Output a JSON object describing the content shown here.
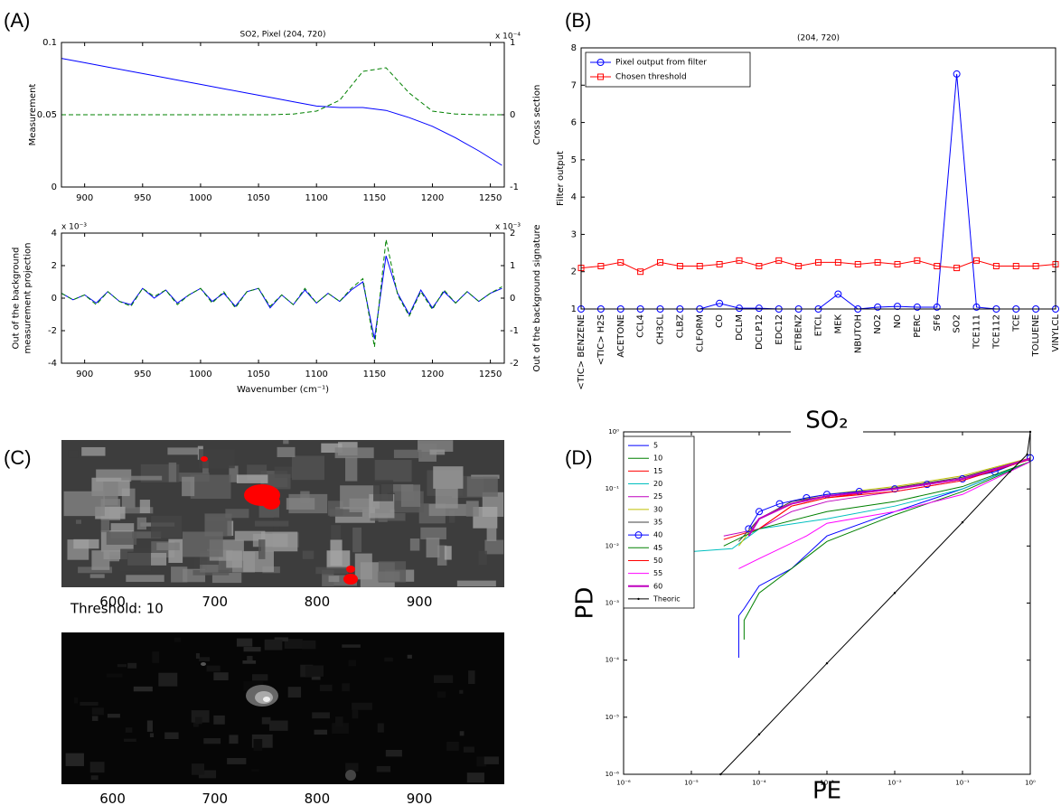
{
  "chart_data": [
    {
      "type": "line",
      "panel": "(A)",
      "title": "SO2, Pixel (204, 720)",
      "ylabel": "Measurement",
      "y2label": "Cross section",
      "y2_multiplier": "x 10⁻⁴",
      "x": [
        880,
        900,
        920,
        940,
        960,
        980,
        1000,
        1020,
        1040,
        1060,
        1080,
        1100,
        1120,
        1140,
        1160,
        1180,
        1200,
        1220,
        1240,
        1260
      ],
      "series": [
        {
          "color": "#0000ff",
          "values": [
            0.089,
            0.086,
            0.083,
            0.08,
            0.077,
            0.074,
            0.071,
            0.068,
            0.065,
            0.062,
            0.059,
            0.056,
            0.055,
            0.055,
            0.053,
            0.048,
            0.042,
            0.034,
            0.025,
            0.015
          ]
        },
        {
          "color": "#008000",
          "axis": "y2",
          "linestyle": "dashed",
          "values": [
            0,
            0,
            0,
            0,
            0,
            0,
            0,
            0,
            0,
            0,
            0.01,
            0.05,
            0.2,
            0.6,
            0.65,
            0.3,
            0.05,
            0.01,
            0,
            0
          ]
        }
      ],
      "xlim": [
        880,
        1262
      ],
      "xticks": [
        900,
        950,
        1000,
        1050,
        1100,
        1150,
        1200,
        1250
      ],
      "ylim": [
        0,
        0.1
      ],
      "yticks": [
        0,
        0.05,
        0.1
      ],
      "y2lim": [
        -1,
        1
      ],
      "y2ticks": [
        -1,
        0,
        1
      ]
    },
    {
      "type": "line",
      "xlabel": "Wavenumber (cm⁻¹)",
      "ylabel": [
        "Out of the background",
        "measurement projection"
      ],
      "y2label": "Out of the background signature",
      "y_multiplier": "x 10⁻³",
      "y2_multiplier": "x 10⁻³",
      "x": [
        880,
        890,
        900,
        910,
        920,
        930,
        940,
        950,
        960,
        970,
        980,
        990,
        1000,
        1010,
        1020,
        1030,
        1040,
        1050,
        1060,
        1070,
        1080,
        1090,
        1100,
        1110,
        1120,
        1130,
        1140,
        1150,
        1160,
        1170,
        1180,
        1190,
        1200,
        1210,
        1220,
        1230,
        1240,
        1250,
        1260
      ],
      "series": [
        {
          "color": "#0000ff",
          "values": [
            0.3,
            -0.1,
            0.2,
            -0.3,
            0.4,
            -0.2,
            -0.4,
            0.6,
            0,
            0.5,
            -0.3,
            0.2,
            0.6,
            -0.2,
            0.3,
            -0.5,
            0.4,
            0.6,
            -0.6,
            0.2,
            -0.4,
            0.5,
            -0.3,
            0.3,
            -0.2,
            0.5,
            1,
            -2.5,
            2.6,
            0.3,
            -1,
            0.5,
            -0.6,
            0.4,
            -0.3,
            0.4,
            -0.2,
            0.3,
            0.6
          ]
        },
        {
          "color": "#008000",
          "axis": "y2",
          "linestyle": "dashed",
          "values": [
            0.15,
            -0.05,
            0.1,
            -0.2,
            0.2,
            -0.1,
            -0.25,
            0.3,
            0.05,
            0.25,
            -0.2,
            0.1,
            0.3,
            -0.15,
            0.2,
            -0.3,
            0.2,
            0.3,
            -0.25,
            0.1,
            -0.2,
            0.3,
            -0.15,
            0.15,
            -0.1,
            0.3,
            0.6,
            -1.5,
            1.8,
            0.1,
            -0.55,
            0.2,
            -0.35,
            0.25,
            -0.15,
            0.2,
            -0.1,
            0.15,
            0.35
          ]
        }
      ],
      "xlim": [
        880,
        1262
      ],
      "xticks": [
        900,
        950,
        1000,
        1050,
        1100,
        1150,
        1200,
        1250
      ],
      "ylim": [
        -4,
        4
      ],
      "yticks": [
        -4,
        -2,
        0,
        2,
        4
      ],
      "y2lim": [
        -2,
        2
      ],
      "y2ticks": [
        -2,
        -1,
        0,
        1,
        2
      ]
    },
    {
      "type": "line",
      "panel": "(B)",
      "title": "(204, 720)",
      "ylabel": "Filter output",
      "legend": "upper left",
      "categories": [
        "<TIC> BENZENE",
        "<TIC> H2S",
        "ACETONE",
        "CCL4",
        "CH3CL",
        "CLBZ",
        "CLFORM",
        "CO",
        "DCLM",
        "DCLP12",
        "EDC12",
        "ETBENZ",
        "ETCL",
        "MEK",
        "NBUTOH",
        "NO2",
        "NO",
        "PERC",
        "SF6",
        "SO2",
        "TCE111",
        "TCE112",
        "TCE",
        "TOLUENE",
        "VINYLCL"
      ],
      "series": [
        {
          "name": "Pixel output from filter",
          "color": "#0000ff",
          "marker": "o",
          "values": [
            1,
            1,
            1,
            1,
            1,
            1,
            1,
            1.15,
            1.02,
            1.02,
            1,
            1,
            1,
            1.4,
            1,
            1.05,
            1.07,
            1.05,
            1.05,
            7.3,
            1.05,
            1,
            1,
            1,
            1
          ]
        },
        {
          "name": "Chosen threshold",
          "color": "#ff0000",
          "marker": "s",
          "values": [
            2.1,
            2.15,
            2.25,
            2,
            2.25,
            2.15,
            2.15,
            2.2,
            2.3,
            2.15,
            2.3,
            2.15,
            2.25,
            2.25,
            2.2,
            2.25,
            2.2,
            2.3,
            2.15,
            2.1,
            2.3,
            2.15,
            2.15,
            2.15,
            2.2
          ]
        }
      ],
      "ylim": [
        1,
        8
      ],
      "yticks": [
        1,
        2,
        3,
        4,
        5,
        6,
        7,
        8
      ]
    },
    {
      "type": "image",
      "panel": "(C)",
      "annotation": "Threshold: 10",
      "xlim": [
        550,
        983
      ],
      "xticks": [
        600,
        700,
        800,
        900
      ]
    },
    {
      "type": "image",
      "xlim": [
        550,
        983
      ],
      "xticks": [
        600,
        700,
        800,
        900
      ]
    },
    {
      "type": "line",
      "panel": "(D)",
      "title": "SO₂",
      "xlabel": "PE",
      "ylabel": "PD",
      "legend": "upper left",
      "xscale": "log",
      "yscale": "log",
      "xlim": [
        1e-06,
        1
      ],
      "ylim": [
        1e-06,
        1
      ],
      "xticks": [
        {
          "value": 1e-06,
          "label": "10⁻⁶"
        },
        {
          "value": 1e-05,
          "label": "10⁻⁵"
        },
        {
          "value": 0.0001,
          "label": "10⁻⁴"
        },
        {
          "value": 0.001,
          "label": "10⁻³"
        },
        {
          "value": 0.01,
          "label": "10⁻²"
        },
        {
          "value": 0.1,
          "label": "10⁻¹"
        },
        {
          "value": 1,
          "label": "10⁰"
        }
      ],
      "yticks": [
        {
          "value": 1e-06,
          "label": "10⁻⁶"
        },
        {
          "value": 1e-05,
          "label": "10⁻⁵"
        },
        {
          "value": 0.0001,
          "label": "10⁻⁴"
        },
        {
          "value": 0.001,
          "label": "10⁻³"
        },
        {
          "value": 0.01,
          "label": "10⁻²"
        },
        {
          "value": 0.1,
          "label": "10⁻¹"
        },
        {
          "value": 1,
          "label": "10⁰"
        }
      ],
      "series": [
        {
          "name": "5",
          "color": "#0000ff",
          "x": [
            5e-05,
            5e-05,
            6e-05,
            0.0001,
            0.0003,
            0.001,
            0.01,
            0.1,
            1
          ],
          "values": [
            0.00011,
            0.0006,
            0.0008,
            0.002,
            0.004,
            0.015,
            0.04,
            0.1,
            0.3
          ]
        },
        {
          "name": "10",
          "color": "#008000",
          "x": [
            6e-05,
            6e-05,
            0.0001,
            0.0003,
            0.001,
            0.01,
            0.1,
            1
          ],
          "values": [
            0.00023,
            0.0005,
            0.0015,
            0.004,
            0.012,
            0.035,
            0.09,
            0.3
          ]
        },
        {
          "name": "15",
          "color": "#ff0000",
          "x": [
            3e-05,
            0.0001,
            0.0003,
            0.001,
            0.01,
            0.1,
            1
          ],
          "values": [
            0.013,
            0.02,
            0.05,
            0.07,
            0.1,
            0.15,
            0.35
          ]
        },
        {
          "name": "20",
          "color": "#00bfbf",
          "x": [
            1e-05,
            4e-05,
            0.0001,
            0.001,
            0.01,
            0.1,
            1
          ],
          "values": [
            0.008,
            0.009,
            0.02,
            0.03,
            0.05,
            0.1,
            0.3
          ]
        },
        {
          "name": "25",
          "color": "#bf00bf",
          "x": [
            3e-05,
            0.0001,
            0.0003,
            0.001,
            0.01,
            0.1,
            1
          ],
          "values": [
            0.015,
            0.02,
            0.04,
            0.06,
            0.09,
            0.14,
            0.33
          ]
        },
        {
          "name": "30",
          "color": "#bfbf00",
          "x": [
            5e-05,
            0.0001,
            0.0003,
            0.001,
            0.01,
            0.1,
            1
          ],
          "values": [
            0.01,
            0.03,
            0.06,
            0.08,
            0.11,
            0.17,
            0.35
          ]
        },
        {
          "name": "35",
          "color": "#404040",
          "x": [
            5e-05,
            0.0001,
            0.0003,
            0.001,
            0.01,
            0.1,
            1
          ],
          "values": [
            0.012,
            0.03,
            0.06,
            0.075,
            0.105,
            0.16,
            0.34
          ]
        },
        {
          "name": "40",
          "color": "#0000ff",
          "marker": "o",
          "x": [
            7e-05,
            0.0001,
            0.0002,
            0.0005,
            0.001,
            0.003,
            0.01,
            0.03,
            0.1,
            0.3,
            1
          ],
          "values": [
            0.02,
            0.04,
            0.055,
            0.07,
            0.08,
            0.09,
            0.1,
            0.12,
            0.15,
            0.2,
            0.35
          ]
        },
        {
          "name": "45",
          "color": "#008000",
          "x": [
            3e-05,
            0.0001,
            0.001,
            0.01,
            0.1,
            1
          ],
          "values": [
            0.01,
            0.02,
            0.04,
            0.06,
            0.11,
            0.3
          ]
        },
        {
          "name": "50",
          "color": "#ff0000",
          "x": [
            0.0001,
            0.0003,
            0.001,
            0.01,
            0.1,
            1
          ],
          "values": [
            0.02,
            0.05,
            0.07,
            0.09,
            0.14,
            0.33
          ]
        },
        {
          "name": "55",
          "color": "#ff00ff",
          "x": [
            5e-05,
            0.0001,
            0.0005,
            0.001,
            0.01,
            0.1,
            1
          ],
          "values": [
            0.004,
            0.006,
            0.015,
            0.025,
            0.04,
            0.08,
            0.3
          ]
        },
        {
          "name": "60",
          "color": "#bf00bf",
          "linewidth": 2,
          "x": [
            7e-05,
            0.0001,
            0.0003,
            0.001,
            0.01,
            0.1,
            1
          ],
          "values": [
            0.015,
            0.03,
            0.055,
            0.075,
            0.1,
            0.15,
            0.34
          ]
        },
        {
          "name": "Theoric",
          "color": "#000000",
          "marker": ".",
          "x": [
            2.7e-05,
            0.0001,
            0.001,
            0.01,
            0.1,
            0.5,
            0.9,
            1
          ],
          "values": [
            1e-06,
            5e-06,
            8.8e-05,
            0.0015,
            0.026,
            0.2,
            0.4,
            1
          ]
        }
      ]
    }
  ]
}
